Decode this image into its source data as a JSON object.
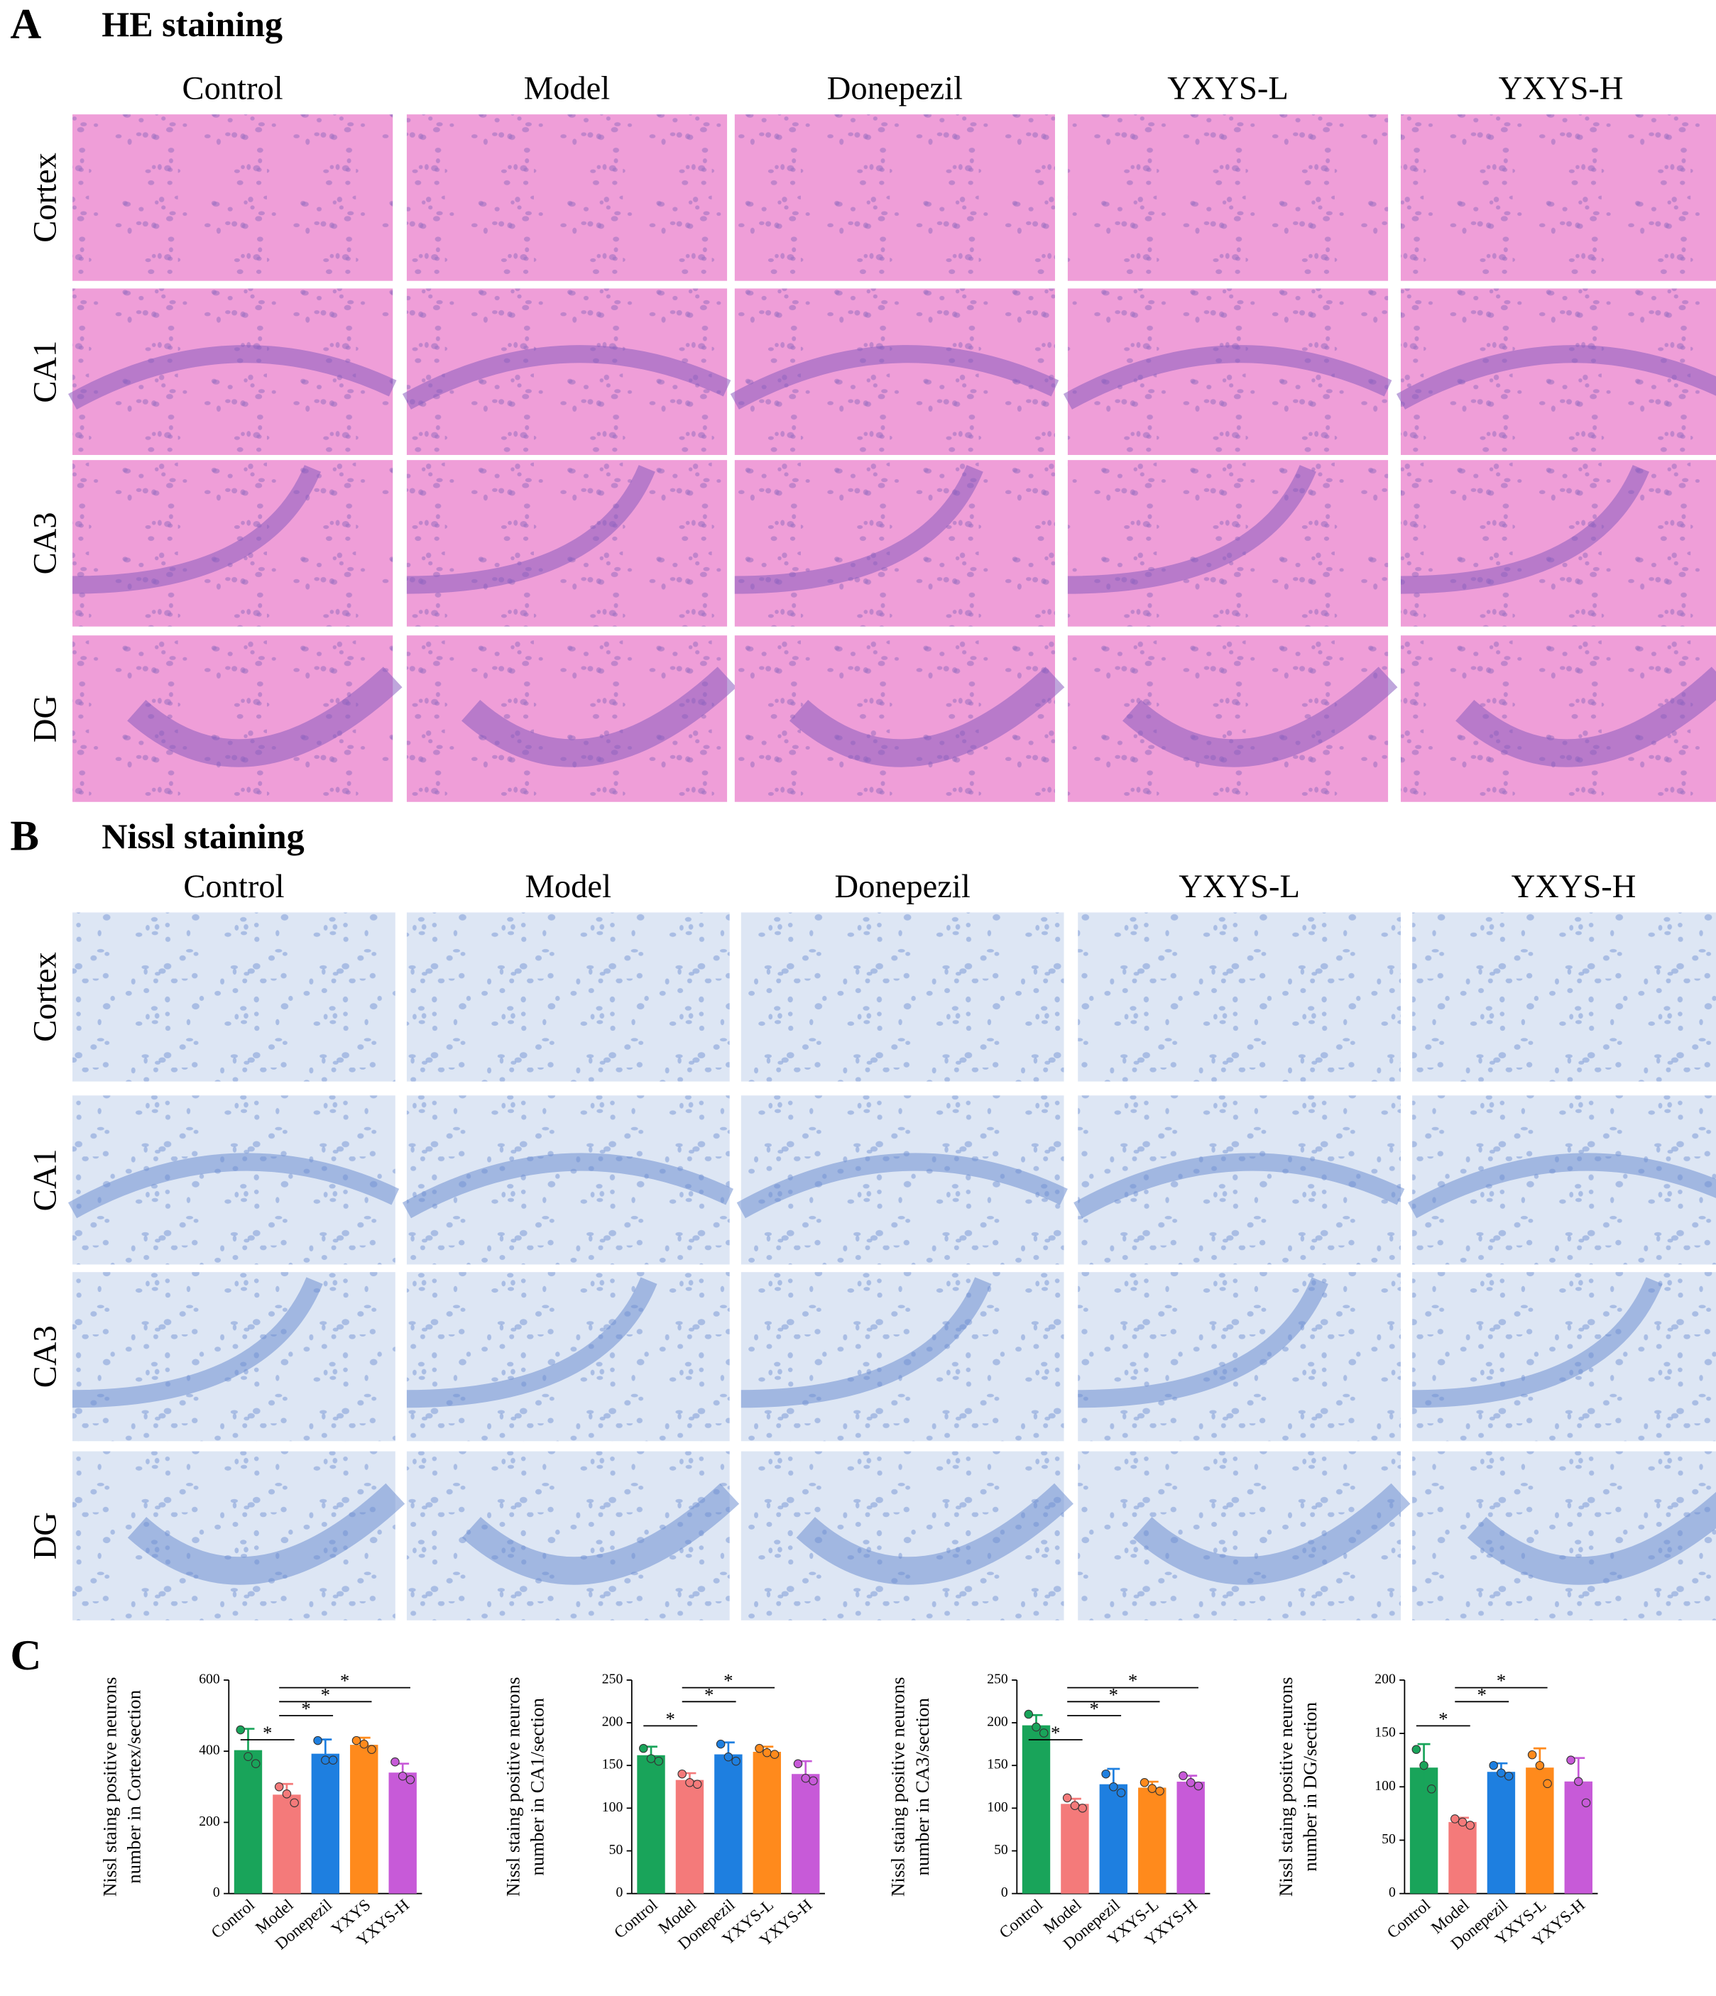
{
  "panel_a": {
    "label": "A",
    "title": "HE staining",
    "columns": [
      "Control",
      "Model",
      "Donepezil",
      "YXYS-L",
      "YXYS-H"
    ],
    "rows": [
      "Cortex",
      "CA1",
      "CA3",
      "DG"
    ]
  },
  "panel_b": {
    "label": "B",
    "title": "Nissl staining",
    "columns": [
      "Control",
      "Model",
      "Donepezil",
      "YXYS-L",
      "YXYS-H"
    ],
    "rows": [
      "Cortex",
      "CA1",
      "CA3",
      "DG"
    ]
  },
  "panel_c": {
    "label": "C"
  },
  "chart_data": [
    {
      "type": "bar",
      "y_label": [
        "Nissl staing positive neurons",
        "number in Cortex/section"
      ],
      "categories": [
        "Control",
        "Model",
        "Donepezil",
        "YXYS",
        "YXYS-H"
      ],
      "values": [
        403,
        278,
        393,
        418,
        340
      ],
      "errors": [
        60,
        30,
        40,
        20,
        25
      ],
      "points": [
        [
          460,
          385,
          365
        ],
        [
          300,
          280,
          255
        ],
        [
          430,
          375,
          375
        ],
        [
          430,
          420,
          405
        ],
        [
          370,
          330,
          320
        ]
      ],
      "colors": [
        "#19a45a",
        "#f47a7a",
        "#1e7fe0",
        "#ff8a1c",
        "#c75ad8"
      ],
      "ylim": [
        0,
        600
      ],
      "yticks": [
        0,
        200,
        400,
        600
      ],
      "significance": [
        {
          "between": [
            0,
            1
          ],
          "label": "*"
        },
        {
          "between": [
            1,
            2
          ],
          "label": "*"
        },
        {
          "between": [
            1,
            3
          ],
          "label": "*"
        },
        {
          "between": [
            1,
            4
          ],
          "label": "*"
        }
      ]
    },
    {
      "type": "bar",
      "y_label": [
        "Nissl staing positive neurons",
        "number in CA1/section"
      ],
      "categories": [
        "Control",
        "Model",
        "Donepezil",
        "YXYS-L",
        "YXYS-H"
      ],
      "values": [
        162,
        133,
        163,
        166,
        140
      ],
      "errors": [
        10,
        8,
        14,
        6,
        15
      ],
      "points": [
        [
          170,
          158,
          155
        ],
        [
          140,
          130,
          128
        ],
        [
          175,
          160,
          155
        ],
        [
          170,
          165,
          163
        ],
        [
          152,
          135,
          132
        ]
      ],
      "colors": [
        "#19a45a",
        "#f47a7a",
        "#1e7fe0",
        "#ff8a1c",
        "#c75ad8"
      ],
      "ylim": [
        0,
        250
      ],
      "yticks": [
        0,
        50,
        100,
        150,
        200,
        250
      ],
      "significance": [
        {
          "between": [
            0,
            1
          ],
          "label": "*"
        },
        {
          "between": [
            1,
            2
          ],
          "label": "*"
        },
        {
          "between": [
            1,
            3
          ],
          "label": "*"
        }
      ]
    },
    {
      "type": "bar",
      "y_label": [
        "Nissl staing positive neurons",
        "number in CA3/section"
      ],
      "categories": [
        "Control",
        "Model",
        "Donepezil",
        "YXYS-L",
        "YXYS-H"
      ],
      "values": [
        197,
        105,
        128,
        124,
        131
      ],
      "errors": [
        12,
        6,
        18,
        7,
        7
      ],
      "points": [
        [
          210,
          195,
          188
        ],
        [
          112,
          103,
          100
        ],
        [
          140,
          125,
          118
        ],
        [
          130,
          123,
          120
        ],
        [
          138,
          130,
          126
        ]
      ],
      "colors": [
        "#19a45a",
        "#f47a7a",
        "#1e7fe0",
        "#ff8a1c",
        "#c75ad8"
      ],
      "ylim": [
        0,
        250
      ],
      "yticks": [
        0,
        50,
        100,
        150,
        200,
        250
      ],
      "significance": [
        {
          "between": [
            0,
            1
          ],
          "label": "*"
        },
        {
          "between": [
            1,
            2
          ],
          "label": "*"
        },
        {
          "between": [
            1,
            3
          ],
          "label": "*"
        },
        {
          "between": [
            1,
            4
          ],
          "label": "*"
        }
      ]
    },
    {
      "type": "bar",
      "y_label": [
        "Nissl staing positive neurons",
        "number in DG/section"
      ],
      "categories": [
        "Control",
        "Model",
        "Donepezil",
        "YXYS-L",
        "YXYS-H"
      ],
      "values": [
        118,
        67,
        114,
        118,
        105
      ],
      "errors": [
        22,
        4,
        8,
        18,
        22
      ],
      "points": [
        [
          135,
          120,
          98
        ],
        [
          70,
          67,
          64
        ],
        [
          120,
          113,
          110
        ],
        [
          130,
          120,
          103
        ],
        [
          125,
          105,
          85
        ]
      ],
      "colors": [
        "#19a45a",
        "#f47a7a",
        "#1e7fe0",
        "#ff8a1c",
        "#c75ad8"
      ],
      "ylim": [
        0,
        200
      ],
      "yticks": [
        0,
        50,
        100,
        150,
        200
      ],
      "significance": [
        {
          "between": [
            0,
            1
          ],
          "label": "*"
        },
        {
          "between": [
            1,
            2
          ],
          "label": "*"
        },
        {
          "between": [
            1,
            3
          ],
          "label": "*"
        }
      ]
    }
  ]
}
